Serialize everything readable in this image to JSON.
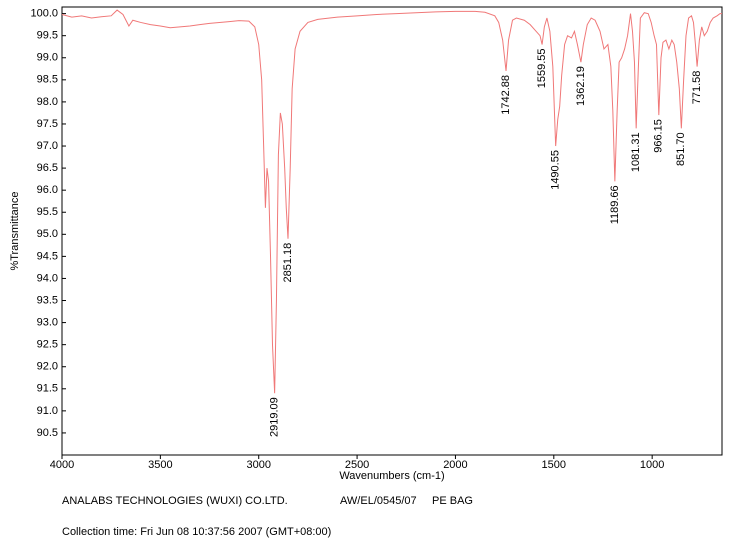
{
  "chart_data": {
    "type": "line",
    "x_label": "Wavenumbers (cm-1)",
    "y_label": "%Transmittance",
    "color": "#f07878",
    "xlim": [
      4000,
      645
    ],
    "xticks": [
      4000,
      3500,
      3000,
      2500,
      2000,
      1500,
      1000
    ],
    "ylim": [
      90.0,
      100.15
    ],
    "yticks": [
      90.5,
      {
        "value": 91,
        "label": "91.0"
      },
      91.5,
      {
        "value": 92,
        "label": "92.0"
      },
      92.5,
      {
        "value": 93,
        "label": "93.0"
      },
      93.5,
      {
        "value": 94,
        "label": "94.0"
      },
      94.5,
      {
        "value": 95,
        "label": "95.0"
      },
      95.5,
      {
        "value": 96,
        "label": "96.0"
      },
      96.5,
      {
        "value": 97,
        "label": "97.0"
      },
      97.5,
      {
        "value": 98,
        "label": "98.0"
      },
      98.5,
      {
        "value": 99,
        "label": "99.0"
      },
      99.5,
      {
        "value": 100,
        "label": "100.0"
      }
    ],
    "x": [
      4000,
      3950,
      3900,
      3850,
      3800,
      3750,
      3720,
      3690,
      3660,
      3640,
      3600,
      3550,
      3500,
      3450,
      3400,
      3350,
      3300,
      3250,
      3200,
      3150,
      3100,
      3050,
      3020,
      3000,
      2985,
      2975,
      2966,
      2958,
      2950,
      2940,
      2930,
      2919.09,
      2910,
      2900,
      2890,
      2880,
      2868,
      2860,
      2851.18,
      2840,
      2830,
      2815,
      2790,
      2750,
      2700,
      2600,
      2500,
      2400,
      2300,
      2200,
      2100,
      2000,
      1900,
      1850,
      1800,
      1780,
      1760,
      1742.88,
      1730,
      1710,
      1690,
      1650,
      1620,
      1590,
      1570,
      1559.55,
      1548,
      1535,
      1520,
      1505,
      1490.55,
      1480,
      1470,
      1460,
      1445,
      1430,
      1410,
      1395,
      1380,
      1362.19,
      1350,
      1330,
      1310,
      1290,
      1265,
      1245,
      1225,
      1210,
      1200,
      1189.66,
      1178,
      1168,
      1155,
      1140,
      1125,
      1110,
      1100,
      1090,
      1081.31,
      1070,
      1060,
      1040,
      1020,
      1005,
      990,
      978,
      966.15,
      955,
      945,
      930,
      915,
      900,
      888,
      875,
      862,
      851.7,
      840,
      828,
      815,
      800,
      790,
      780,
      771.58,
      760,
      748,
      735,
      720,
      705,
      690,
      670,
      655,
      645
    ],
    "values": [
      99.98,
      99.92,
      99.95,
      99.9,
      99.93,
      99.95,
      100.08,
      99.98,
      99.72,
      99.85,
      99.8,
      99.75,
      99.72,
      99.68,
      99.7,
      99.72,
      99.75,
      99.78,
      99.8,
      99.82,
      99.84,
      99.83,
      99.7,
      99.3,
      98.5,
      97.0,
      95.6,
      96.5,
      96.2,
      94.5,
      92.5,
      91.4,
      93.5,
      96.8,
      97.75,
      97.5,
      96.5,
      95.6,
      94.9,
      96.5,
      98.3,
      99.2,
      99.6,
      99.8,
      99.87,
      99.92,
      99.95,
      99.98,
      100.0,
      100.02,
      100.04,
      100.05,
      100.05,
      100.03,
      99.95,
      99.8,
      99.4,
      98.7,
      99.4,
      99.85,
      99.9,
      99.85,
      99.75,
      99.6,
      99.5,
      99.3,
      99.7,
      99.9,
      99.6,
      98.8,
      97.0,
      97.6,
      97.9,
      98.6,
      99.3,
      99.5,
      99.45,
      99.6,
      99.3,
      98.9,
      99.3,
      99.75,
      99.9,
      99.85,
      99.6,
      99.2,
      99.3,
      98.8,
      97.8,
      96.2,
      97.8,
      98.9,
      99.0,
      99.2,
      99.5,
      100.0,
      99.6,
      98.9,
      97.4,
      98.8,
      99.9,
      100.02,
      100.0,
      99.8,
      99.5,
      99.3,
      97.7,
      99.0,
      99.35,
      99.4,
      99.2,
      99.4,
      99.3,
      98.9,
      98.3,
      97.4,
      98.5,
      99.5,
      99.9,
      99.95,
      99.8,
      99.3,
      98.8,
      99.4,
      99.7,
      99.5,
      99.6,
      99.8,
      99.9,
      99.95,
      100.0,
      100.0
    ],
    "peaks": [
      {
        "value": 2919.09,
        "label": "2919.09"
      },
      {
        "value": 2851.18,
        "label": "2851.18"
      },
      {
        "value": 1742.88,
        "label": "1742.88"
      },
      {
        "value": 1559.55,
        "label": "1559.55"
      },
      {
        "value": 1490.55,
        "label": "1490.55"
      },
      {
        "value": 1362.19,
        "label": "1362.19"
      },
      {
        "value": 1189.66,
        "label": "1189.66"
      },
      {
        "value": 1081.31,
        "label": "1081.31"
      },
      {
        "value": 966.15,
        "label": "966.15"
      },
      {
        "value": 851.7,
        "label": "851.70"
      },
      {
        "value": 771.58,
        "label": "771.58"
      }
    ]
  },
  "footer": {
    "company": "ANALABS TECHNOLOGIES (WUXI) CO.LTD.",
    "reference": "AW/EL/0545/07",
    "sample": "PE BAG",
    "collection": "Collection time: Fri Jun 08 10:37:56 2007 (GMT+08:00)"
  }
}
